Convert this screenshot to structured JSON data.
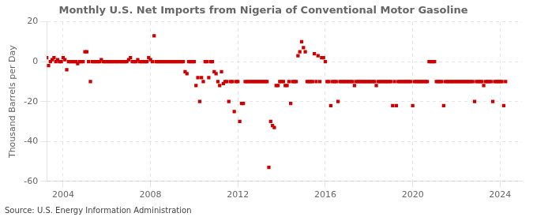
{
  "chart_data": {
    "type": "scatter",
    "title": "Monthly U.S. Net Imports from Nigeria of Conventional Motor Gasoline",
    "y_label": "Thousand Barrels per Day",
    "annotations": [
      "Source: U.S. Energy Information Administration"
    ],
    "color": "#cc0000",
    "marker": "square",
    "grid": true,
    "xlim": [
      2003.25,
      2025.0
    ],
    "xticks": [
      2004,
      2008,
      2012,
      2016,
      2020,
      2024
    ],
    "ylim": [
      -60,
      20
    ],
    "yticks": [
      -60,
      -40,
      -20,
      0,
      20
    ],
    "x": [
      2003.25,
      2003.3333333333333,
      2003.4166666666667,
      2003.5,
      2003.5833333333333,
      2003.6666666666667,
      2003.75,
      2003.8333333333333,
      2003.9166666666667,
      2004,
      2004.0833333333333,
      2004.1666666666667,
      2004.25,
      2004.3333333333333,
      2004.4166666666667,
      2004.5,
      2004.5833333333333,
      2004.6666666666667,
      2004.75,
      2004.8333333333333,
      2004.9166666666667,
      2005,
      2005.0833333333333,
      2005.1666666666667,
      2005.25,
      2005.3333333333333,
      2005.4166666666667,
      2005.5,
      2005.5833333333333,
      2005.6666666666667,
      2005.75,
      2005.8333333333333,
      2005.9166666666667,
      2006,
      2006.0833333333333,
      2006.1666666666667,
      2006.25,
      2006.3333333333333,
      2006.4166666666667,
      2006.5,
      2006.5833333333333,
      2006.6666666666667,
      2006.75,
      2006.8333333333333,
      2006.9166666666667,
      2007,
      2007.0833333333333,
      2007.1666666666667,
      2007.25,
      2007.3333333333333,
      2007.4166666666667,
      2007.5,
      2007.5833333333333,
      2007.6666666666667,
      2007.75,
      2007.8333333333333,
      2007.9166666666667,
      2008,
      2008.0833333333333,
      2008.1666666666667,
      2008.25,
      2008.3333333333333,
      2008.4166666666667,
      2008.5,
      2008.5833333333333,
      2008.6666666666667,
      2008.75,
      2008.8333333333333,
      2008.9166666666667,
      2009,
      2009.0833333333333,
      2009.1666666666667,
      2009.25,
      2009.3333333333333,
      2009.4166666666667,
      2009.5,
      2009.5833333333333,
      2009.6666666666667,
      2009.75,
      2009.8333333333333,
      2009.9166666666667,
      2010,
      2010.0833333333333,
      2010.1666666666667,
      2010.25,
      2010.3333333333333,
      2010.4166666666667,
      2010.5,
      2010.5833333333333,
      2010.6666666666667,
      2010.75,
      2010.8333333333333,
      2010.9166666666667,
      2011,
      2011.0833333333333,
      2011.1666666666667,
      2011.25,
      2011.3333333333333,
      2011.4166666666667,
      2011.5,
      2011.5833333333333,
      2011.6666666666667,
      2011.75,
      2011.8333333333333,
      2011.9166666666667,
      2012,
      2012.0833333333333,
      2012.1666666666667,
      2012.25,
      2012.3333333333333,
      2012.4166666666667,
      2012.5,
      2012.5833333333333,
      2012.6666666666667,
      2012.75,
      2012.8333333333333,
      2012.9166666666667,
      2013,
      2013.0833333333333,
      2013.1666666666667,
      2013.25,
      2013.3333333333333,
      2013.4166666666667,
      2013.5,
      2013.5833333333333,
      2013.6666666666667,
      2013.75,
      2013.8333333333333,
      2013.9166666666667,
      2014,
      2014.0833333333333,
      2014.1666666666667,
      2014.25,
      2014.3333333333333,
      2014.4166666666667,
      2014.5,
      2014.5833333333333,
      2014.6666666666667,
      2014.75,
      2014.8333333333333,
      2014.9166666666667,
      2015,
      2015.0833333333333,
      2015.1666666666667,
      2015.25,
      2015.3333333333333,
      2015.4166666666667,
      2015.5,
      2015.5833333333333,
      2015.6666666666667,
      2015.75,
      2015.8333333333333,
      2015.9166666666667,
      2016,
      2016.0833333333333,
      2016.1666666666667,
      2016.25,
      2016.3333333333333,
      2016.4166666666667,
      2016.5,
      2016.5833333333333,
      2016.6666666666667,
      2016.75,
      2016.8333333333333,
      2016.9166666666667,
      2017,
      2017.0833333333333,
      2017.1666666666667,
      2017.25,
      2017.3333333333333,
      2017.4166666666667,
      2017.5,
      2017.5833333333333,
      2017.6666666666667,
      2017.75,
      2017.8333333333333,
      2017.9166666666667,
      2018,
      2018.0833333333333,
      2018.1666666666667,
      2018.25,
      2018.3333333333333,
      2018.4166666666667,
      2018.5,
      2018.5833333333333,
      2018.6666666666667,
      2018.75,
      2018.8333333333333,
      2018.9166666666667,
      2019,
      2019.0833333333333,
      2019.1666666666667,
      2019.25,
      2019.3333333333333,
      2019.4166666666667,
      2019.5,
      2019.5833333333333,
      2019.6666666666667,
      2019.75,
      2019.8333333333333,
      2019.9166666666667,
      2020,
      2020.0833333333333,
      2020.1666666666667,
      2020.25,
      2020.3333333333333,
      2020.4166666666667,
      2020.5,
      2020.5833333333333,
      2020.6666666666667,
      2020.75,
      2020.8333333333333,
      2020.9166666666667,
      2021,
      2021.0833333333333,
      2021.1666666666667,
      2021.25,
      2021.3333333333333,
      2021.4166666666667,
      2021.5,
      2021.5833333333333,
      2021.6666666666667,
      2021.75,
      2021.8333333333333,
      2021.9166666666667,
      2022,
      2022.0833333333333,
      2022.1666666666667,
      2022.25,
      2022.3333333333333,
      2022.4166666666667,
      2022.5,
      2022.5833333333333,
      2022.6666666666667,
      2022.75,
      2022.8333333333333,
      2022.9166666666667,
      2023,
      2023.0833333333333,
      2023.1666666666667,
      2023.25,
      2023.3333333333333,
      2023.4166666666667,
      2023.5,
      2023.5833333333333,
      2023.6666666666667,
      2023.75,
      2023.8333333333333,
      2023.9166666666667,
      2024,
      2024.0833333333333,
      2024.1666666666667,
      2024.25
    ],
    "values": [
      2,
      -2,
      0,
      1,
      2,
      0,
      1,
      0,
      0,
      2,
      1,
      -4,
      0,
      0,
      0,
      0,
      0,
      -1,
      0,
      0,
      0,
      5,
      5,
      0,
      -10,
      0,
      0,
      0,
      0,
      0,
      1,
      0,
      0,
      0,
      0,
      0,
      0,
      0,
      0,
      0,
      0,
      0,
      0,
      0,
      0,
      1,
      2,
      0,
      0,
      0,
      1,
      0,
      0,
      0,
      0,
      0,
      2,
      1,
      0,
      13,
      0,
      0,
      0,
      0,
      0,
      0,
      0,
      0,
      0,
      0,
      0,
      0,
      0,
      0,
      0,
      0,
      -5,
      -6,
      0,
      0,
      0,
      0,
      -12,
      -8,
      -20,
      -8,
      -10,
      0,
      0,
      -8,
      0,
      0,
      -5,
      -6,
      -10,
      -12,
      -5,
      -11,
      -10,
      -10,
      -20,
      -10,
      -10,
      -25,
      -10,
      -10,
      -30,
      -21,
      -21,
      -10,
      -10,
      -10,
      -10,
      -10,
      -10,
      -10,
      -10,
      -10,
      -10,
      -10,
      -10,
      -10,
      -53,
      -30,
      -32,
      -33,
      -12,
      -12,
      -10,
      -10,
      -10,
      -12,
      -12,
      -10,
      -21,
      -10,
      -10,
      -10,
      3,
      5,
      10,
      7,
      5,
      -10,
      -10,
      -10,
      -10,
      4,
      -10,
      3,
      -10,
      2,
      2,
      0,
      -10,
      -10,
      -22,
      -10,
      -10,
      -10,
      -20,
      -10,
      -10,
      -10,
      -10,
      -10,
      -10,
      -10,
      -10,
      -12,
      -10,
      -10,
      -10,
      -10,
      -10,
      -10,
      -10,
      -10,
      -10,
      -10,
      -10,
      -12,
      -10,
      -10,
      -10,
      -10,
      -10,
      -10,
      -10,
      -10,
      -22,
      -10,
      -22,
      -10,
      -10,
      -10,
      -10,
      -10,
      -10,
      -10,
      -10,
      -22,
      -10,
      -10,
      -10,
      -10,
      -10,
      -10,
      -10,
      -10,
      0,
      0,
      0,
      0,
      -10,
      -10,
      -10,
      -10,
      -22,
      -10,
      -10,
      -10,
      -10,
      -10,
      -10,
      -10,
      -10,
      -10,
      -10,
      -10,
      -10,
      -10,
      -10,
      -10,
      -10,
      -20,
      -10,
      -10,
      -10,
      -10,
      -12,
      -10,
      -10,
      -10,
      -10,
      -20,
      -10,
      -10,
      -10,
      -10,
      -10,
      -22,
      -10
    ]
  }
}
